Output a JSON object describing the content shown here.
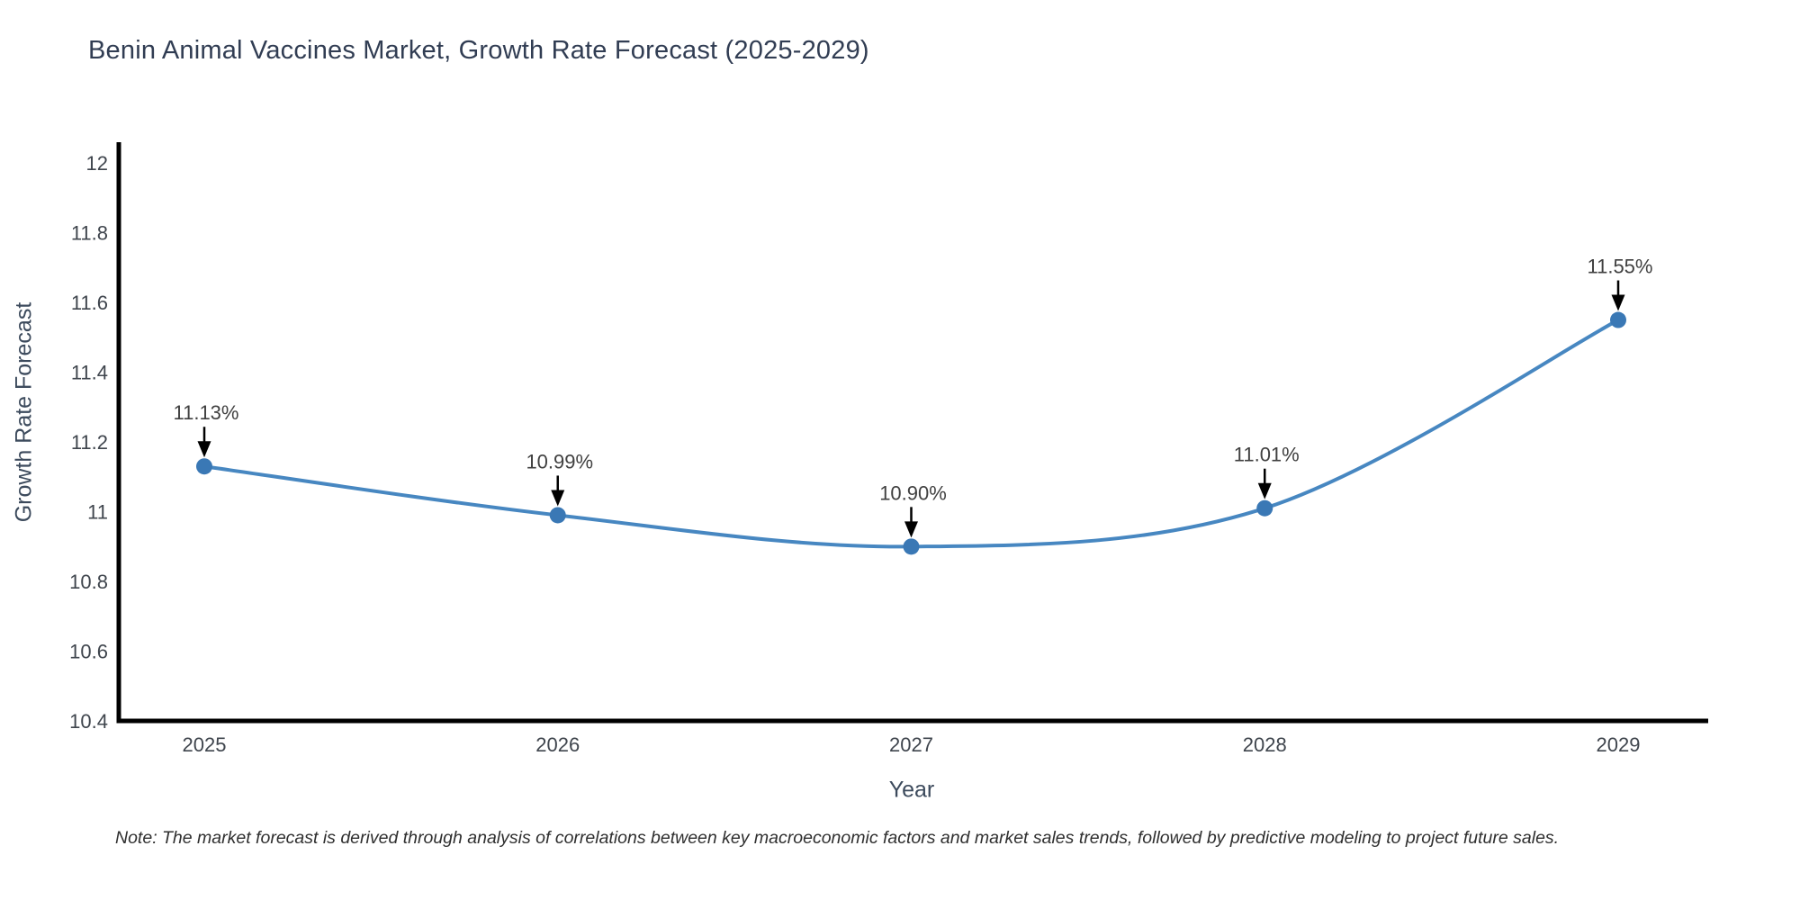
{
  "note": "Note: The market forecast is derived through analysis of correlations between key macroeconomic factors and market sales trends, followed by predictive modeling to project future sales.",
  "colors": {
    "background": "#ffffff",
    "line": "#4787c1",
    "marker": "#3a78b5",
    "axis": "#000000",
    "arrow": "#000000",
    "title-text": "#313d53",
    "axis-label-text": "#3c4a5c",
    "tick-text": "#3f454d",
    "annotation-text": "#404040",
    "note-text": "#2f2f2f"
  },
  "chart_data": {
    "type": "line",
    "title": "Benin Animal Vaccines Market, Growth Rate Forecast (2025-2029)",
    "xlabel": "Year",
    "ylabel": "Growth Rate Forecast",
    "series_name": "Growth Rate Forecast",
    "categories": [
      "2025",
      "2026",
      "2027",
      "2028",
      "2029"
    ],
    "values": [
      11.13,
      10.99,
      10.9,
      11.01,
      11.55
    ],
    "point_labels": [
      "11.13%",
      "10.99%",
      "10.90%",
      "11.01%",
      "11.55%"
    ],
    "ylim": [
      10.4,
      12.06
    ],
    "yticks": [
      10.4,
      10.6,
      10.8,
      11,
      11.2,
      11.4,
      11.6,
      11.8,
      12
    ],
    "ytick_labels": [
      "10.4",
      "10.6",
      "10.8",
      "11",
      "11.2",
      "11.4",
      "11.6",
      "11.8",
      "12"
    ],
    "grid": false,
    "legend": "none",
    "line_shape": "spline",
    "marker": "circle",
    "annotation_style": "value label with downward black arrow above each point"
  }
}
